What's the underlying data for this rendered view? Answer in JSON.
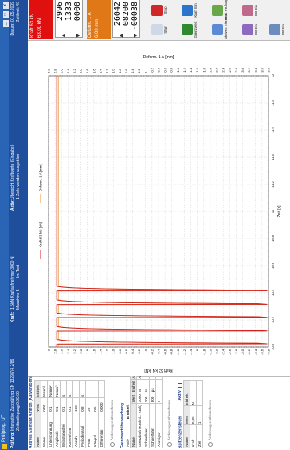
{
  "window": {
    "title": "Prüfprog. UT",
    "controls": [
      "_",
      "□",
      "X"
    ]
  },
  "header": {
    "pruefung_label": "Prüfung:",
    "pruefung_value": "Interaktive Zugprüfung EN 1329/7/4.2/86",
    "pruefung_sub": "Zeitbedingung 0:00:00",
    "kraft_label": "Kraft:",
    "kraft_value": "1,5kN Kraftaufnehmer 3000 N",
    "maschine": "Maschine 5",
    "modus": "Im Test",
    "aktiv_label": "Aktiv:",
    "aktiv_value": "Ubersicht Kraftwerte (Eingabe)",
    "aktiv_sub": "1 Zeile werden ausgeblen",
    "datum": "Datum: 01.05.2009",
    "zeit": "Zeitlimit: 40"
  },
  "left_panel": {
    "section1_title": "Aktives Element  Amtron (Kurvenform)",
    "table1_headers": [
      "Name",
      "Wert",
      "Einheit"
    ],
    "table1_rows": [
      [
        "Name",
        "0,05",
        "N/sec²"
      ],
      [
        "Unterspannung",
        "0,1",
        "N/mm²"
      ],
      [
        "Amplitude",
        "0,1",
        "N/mm²"
      ],
      [
        "Belastungsfrei",
        "0,1",
        "s"
      ],
      [
        "Kurvenform",
        "0,1",
        "s"
      ],
      [
        "Anzahl",
        "100",
        ""
      ],
      [
        "Periodenzahl",
        "0,8",
        "s"
      ],
      [
        "Peak",
        "20",
        ""
      ],
      [
        "Integral",
        "0,5",
        ""
      ],
      [
        "Differential",
        "0,000",
        ""
      ]
    ],
    "opt1": "Änderungen übernehmen",
    "section2_title": "Grenzwertüberwachung",
    "ermittelt_label": "Ermittelt",
    "aktiv_label": "Aktiv",
    "table2_headers": [
      "Name",
      "Wert",
      "Einheit",
      "Aus"
    ],
    "table2_rows": [
      [
        "Grenzkraft (Kraft tl... Kraft)",
        "3000",
        "N",
        "Aus"
      ],
      [
        "Schwellwert",
        "100",
        "%",
        ""
      ],
      [
        "Schnellfahrt",
        "800",
        "μs",
        ""
      ],
      [
        "Anzeiger",
        "1",
        "",
        ""
      ]
    ],
    "opt2": "Änderungen übernehmen",
    "section3_title": "Spitzenzeitsteuer",
    "aktiv3_label": "Aktiv",
    "table3_headers": [
      "Name",
      "Wert",
      "Einheit"
    ],
    "table3_rows": [
      [
        "Kraft",
        "0,05",
        "N"
      ],
      [
        "Ziel",
        "1",
        ""
      ]
    ],
    "opt3": "Änderungen übernehmen"
  },
  "chart_data": {
    "type": "line",
    "title": "",
    "xlabel": "Zeit [s]",
    "ylabel": "Kraft 63 kN [kN]",
    "y2label": "Deform. 1 A [mm]",
    "legend": [
      "Kraft 63 kN [kN]",
      "Deform. 1 A [mm]"
    ],
    "xlim": [
      10.0,
      20.0
    ],
    "ylim": [
      -3.8,
      3.0
    ],
    "y2lim": [
      -3.8,
      3.0
    ],
    "xticks": [
      "10.0",
      "10.2",
      "10.4",
      "10.6",
      "10.8",
      "11",
      "11.2",
      "11.4",
      "11.6",
      "11.8",
      "12"
    ],
    "yticks": [
      "3",
      "2.8",
      "2.6",
      "2.4",
      "2.2",
      "2.0",
      "1.8",
      "1.6",
      "1.4",
      "1.2",
      "1.0",
      "0.8",
      "0.6",
      "0.4",
      "0.2",
      "0",
      "-0.2",
      "-0.4",
      "-0.6",
      "-0.8",
      "-1.0",
      "-1.2",
      "-1.4",
      "-1.6",
      "-1.8",
      "-2.0",
      "-2.2",
      "-2.4",
      "-2.6",
      "-2.8",
      "-3.0",
      "-3.2",
      "-3.4",
      "-3.6",
      "-3.8"
    ],
    "y2ticks": [
      "3.0",
      "2.8",
      "2.6",
      "2.4",
      "2.2",
      "2.0",
      "1.8",
      "1.6",
      "1.4",
      "1.2",
      "1.0",
      "0.8",
      "0.6",
      "0.4",
      "0.2",
      "0",
      "-0.2",
      "-0.4",
      "-0.6",
      "-0.8",
      "-1.0",
      "-1.2",
      "-1.4",
      "-1.6",
      "-1.8",
      "-2.0",
      "-2.2",
      "-2.4",
      "-2.6",
      "-2.8",
      "-3.0",
      "-3.2",
      "-3.4",
      "-3.6",
      "-3.8"
    ],
    "peaks_x": [
      10.12,
      10.6,
      11.1,
      11.58,
      12.08
    ],
    "peak_min": -3.8,
    "baseline": 2.7,
    "series": [
      {
        "name": "Kraft 63 kN [kN]",
        "color": "#d21e1e"
      },
      {
        "name": "Deform. 1 A [mm]",
        "color": "#e89030"
      }
    ]
  },
  "right_panel": {
    "kraft_title": "Kraft 63 kN",
    "kraft_sub": "63,00 kN",
    "kraft_vals": [
      "2996",
      "1333",
      "0000"
    ],
    "deform_title": "Deform. 1 A",
    "deform_sub": "6,00 mm",
    "deform_vals": [
      "26042",
      "08200",
      "-00038"
    ],
    "kraft_color": "#e01010",
    "deform_color": "#e07818"
  },
  "toolbar": {
    "items": [
      {
        "label": "Start",
        "icon": "start-icon",
        "color": "#cfd8e6"
      },
      {
        "label": "Stop",
        "icon": "stop-icon",
        "color": "#d02828"
      },
      {
        "label": "Grenzwert",
        "icon": "signal-icon",
        "color": "#2f8a2f"
      },
      {
        "label": "Kraft Ein",
        "icon": "force-icon",
        "color": "#2b76c8"
      },
      {
        "label": "Aktives Element",
        "icon": "element-icon",
        "color": "#5a8ad4"
      },
      {
        "label": "Kraft Prüfung",
        "icon": "check-icon",
        "color": "#6aa64a"
      },
      {
        "label": "PR Ein",
        "icon": "pr-icon",
        "color": "#8c6abf"
      },
      {
        "label": "PR Ein",
        "icon": "pr-icon",
        "color": "#bf6a8c"
      },
      {
        "label": "BR Ein",
        "icon": "br-icon",
        "color": "#6a8cbf"
      }
    ]
  }
}
